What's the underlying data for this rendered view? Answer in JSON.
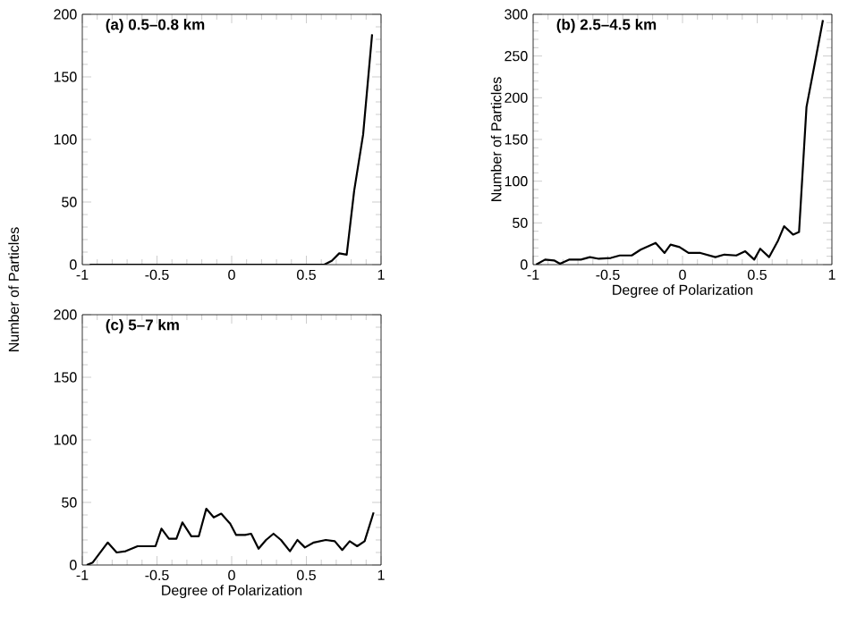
{
  "chart_data": [
    {
      "type": "line",
      "title": "(a) 0.5–0.8 km",
      "ylabel": "Number of Particles",
      "xlim": [
        -1,
        1
      ],
      "ylim": [
        0,
        200
      ],
      "xticks": [
        -1,
        -0.5,
        0,
        0.5,
        1
      ],
      "yticks": [
        0,
        50,
        100,
        150,
        200
      ],
      "grid": false,
      "series": [
        {
          "color": "#000000",
          "x": [
            -0.95,
            -0.9,
            -0.85,
            -0.8,
            -0.75,
            -0.7,
            -0.65,
            -0.6,
            -0.55,
            -0.5,
            -0.45,
            -0.4,
            -0.35,
            -0.3,
            -0.25,
            -0.2,
            -0.15,
            -0.1,
            -0.05,
            0,
            0.05,
            0.1,
            0.15,
            0.2,
            0.25,
            0.3,
            0.35,
            0.4,
            0.45,
            0.5,
            0.55,
            0.6,
            0.62,
            0.67,
            0.72,
            0.77,
            0.82,
            0.88,
            0.94
          ],
          "values": [
            0,
            0,
            0,
            0,
            0,
            0,
            0,
            0,
            0,
            0,
            0,
            0,
            0,
            0,
            0,
            0,
            0,
            0,
            0,
            0,
            0,
            0,
            0,
            0,
            0,
            0,
            0,
            0,
            0,
            0,
            0,
            0,
            0,
            3,
            9,
            8,
            59,
            104,
            184
          ]
        }
      ]
    },
    {
      "type": "line",
      "title": "(b) 2.5–4.5 km",
      "xlabel": "Degree of Polarization",
      "ylabel": "Number of Particles",
      "xlim": [
        -1,
        1
      ],
      "ylim": [
        0,
        300
      ],
      "xticks": [
        -1,
        -0.5,
        0,
        0.5,
        1
      ],
      "yticks": [
        0,
        50,
        100,
        150,
        200,
        250,
        300
      ],
      "grid": false,
      "series": [
        {
          "color": "#000000",
          "x": [
            -0.98,
            -0.92,
            -0.86,
            -0.82,
            -0.76,
            -0.68,
            -0.62,
            -0.56,
            -0.48,
            -0.42,
            -0.34,
            -0.28,
            -0.18,
            -0.12,
            -0.08,
            -0.02,
            0.04,
            0.12,
            0.22,
            0.28,
            0.36,
            0.42,
            0.48,
            0.52,
            0.58,
            0.64,
            0.68,
            0.74,
            0.78,
            0.83,
            0.88,
            0.94
          ],
          "values": [
            0,
            6,
            5,
            1,
            6,
            6,
            9,
            7,
            8,
            11,
            11,
            18,
            26,
            14,
            24,
            21,
            14,
            14,
            9,
            12,
            11,
            16,
            6,
            19,
            9,
            29,
            46,
            36,
            39,
            189,
            236,
            293
          ]
        }
      ]
    },
    {
      "type": "line",
      "title": "(c) 5–7 km",
      "xlabel": "Degree of Polarization",
      "xlim": [
        -1,
        1
      ],
      "ylim": [
        0,
        200
      ],
      "xticks": [
        -1,
        -0.5,
        0,
        0.5,
        1
      ],
      "yticks": [
        0,
        50,
        100,
        150,
        200
      ],
      "grid": false,
      "series": [
        {
          "color": "#000000",
          "x": [
            -0.97,
            -0.93,
            -0.83,
            -0.77,
            -0.71,
            -0.63,
            -0.57,
            -0.51,
            -0.47,
            -0.42,
            -0.37,
            -0.33,
            -0.27,
            -0.22,
            -0.17,
            -0.12,
            -0.07,
            -0.01,
            0.03,
            0.09,
            0.13,
            0.18,
            0.23,
            0.28,
            0.33,
            0.39,
            0.44,
            0.49,
            0.55,
            0.63,
            0.69,
            0.74,
            0.79,
            0.84,
            0.89,
            0.95
          ],
          "values": [
            0,
            2,
            18,
            10,
            11,
            15,
            15,
            15,
            29,
            21,
            21,
            34,
            23,
            23,
            45,
            38,
            41,
            33,
            24,
            24,
            25,
            13,
            20,
            25,
            20,
            11,
            20,
            14,
            18,
            20,
            19,
            12,
            19,
            15,
            19,
            42
          ]
        }
      ]
    }
  ]
}
